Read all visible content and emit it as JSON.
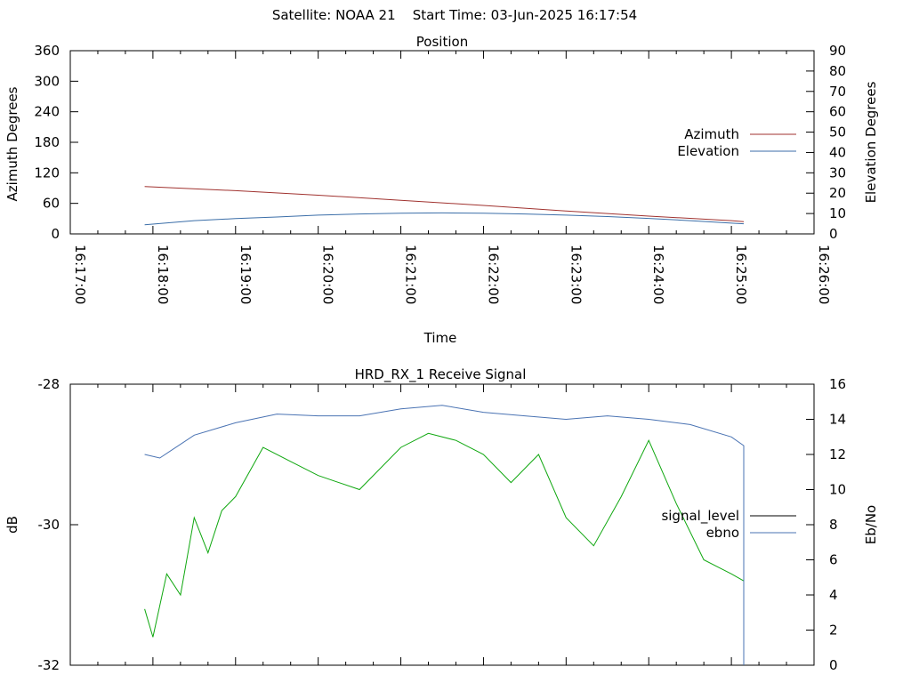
{
  "header": {
    "title": "Satellite: NOAA 21    Start Time: 03-Jun-2025 16:17:54"
  },
  "colors": {
    "azimuth": "#a0322f",
    "elevation": "#3b6ea8",
    "signal_level": "#000000",
    "ebno": "#4a73b3",
    "green_trace": "#0fa70f",
    "axis": "#000000",
    "background": "#ffffff"
  },
  "chart_data": [
    {
      "type": "line",
      "title": "Position",
      "xlabel": "Time",
      "ylabel": "Azimuth Degrees",
      "y2label": "Elevation Degrees",
      "xlim": [
        "16:17:00",
        "16:26:00"
      ],
      "ylim": [
        0,
        360
      ],
      "y2lim": [
        0,
        90
      ],
      "xticks": [
        "16:17:00",
        "16:18:00",
        "16:19:00",
        "16:20:00",
        "16:21:00",
        "16:22:00",
        "16:23:00",
        "16:24:00",
        "16:25:00",
        "16:26:00"
      ],
      "yticks": [
        "0",
        "60",
        "120",
        "180",
        "240",
        "300",
        "360"
      ],
      "y2ticks": [
        "0",
        "10",
        "20",
        "30",
        "40",
        "50",
        "60",
        "70",
        "80",
        "90"
      ],
      "legend_position": "right",
      "series": [
        {
          "name": "Azimuth",
          "axis": "y",
          "x": [
            "16:17:54",
            "16:19:00",
            "16:20:00",
            "16:21:00",
            "16:22:00",
            "16:23:00",
            "16:24:00",
            "16:25:00",
            "16:25:09"
          ],
          "values": [
            93,
            85,
            76,
            66,
            56,
            45,
            35,
            26,
            24
          ]
        },
        {
          "name": "Elevation",
          "axis": "y2",
          "x": [
            "16:17:54",
            "16:18:30",
            "16:19:00",
            "16:19:30",
            "16:20:00",
            "16:20:30",
            "16:21:00",
            "16:21:30",
            "16:22:00",
            "16:22:30",
            "16:23:00",
            "16:23:30",
            "16:24:00",
            "16:24:30",
            "16:25:00",
            "16:25:09"
          ],
          "values": [
            4.5,
            6.5,
            7.5,
            8.3,
            9.2,
            9.8,
            10.2,
            10.3,
            10.2,
            9.8,
            9.2,
            8.5,
            7.6,
            6.5,
            5.3,
            5.0
          ]
        }
      ]
    },
    {
      "type": "line",
      "title": "HRD_RX_1 Receive Signal",
      "ylabel": "dB",
      "y2label": "Eb/No",
      "xlim": [
        "16:17:00",
        "16:26:00"
      ],
      "ylim": [
        -32,
        -28
      ],
      "y2lim": [
        0,
        16
      ],
      "yticks": [
        "-28",
        "-30",
        "-32"
      ],
      "y2ticks": [
        "0",
        "2",
        "4",
        "6",
        "8",
        "10",
        "12",
        "14",
        "16"
      ],
      "legend_position": "right",
      "series": [
        {
          "name": "signal_level",
          "axis": "y",
          "x": [],
          "values": []
        },
        {
          "name": "ebno",
          "axis": "y2",
          "x": [
            "16:17:54",
            "16:18:05",
            "16:18:30",
            "16:19:00",
            "16:19:30",
            "16:20:00",
            "16:20:30",
            "16:21:00",
            "16:21:30",
            "16:22:00",
            "16:22:30",
            "16:23:00",
            "16:23:30",
            "16:24:00",
            "16:24:30",
            "16:25:00",
            "16:25:09",
            "16:25:09"
          ],
          "values": [
            12.0,
            11.8,
            13.1,
            13.8,
            14.3,
            14.2,
            14.2,
            14.6,
            14.8,
            14.4,
            14.2,
            14.0,
            14.2,
            14.0,
            13.7,
            13.0,
            12.5,
            0.0
          ]
        },
        {
          "axis": "y",
          "x": [
            "16:17:54",
            "16:18:00",
            "16:18:10",
            "16:18:20",
            "16:18:30",
            "16:18:40",
            "16:18:50",
            "16:19:00",
            "16:19:20",
            "16:19:40",
            "16:20:00",
            "16:20:30",
            "16:21:00",
            "16:21:20",
            "16:21:40",
            "16:22:00",
            "16:22:20",
            "16:22:40",
            "16:23:00",
            "16:23:20",
            "16:23:40",
            "16:24:00",
            "16:24:20",
            "16:24:40",
            "16:25:00",
            "16:25:09"
          ],
          "values": [
            -31.2,
            -31.6,
            -30.7,
            -31.0,
            -29.9,
            -30.4,
            -29.8,
            -29.6,
            -28.9,
            -29.1,
            -29.3,
            -29.5,
            -28.9,
            -28.7,
            -28.8,
            -29.0,
            -29.4,
            -29.0,
            -29.9,
            -30.3,
            -29.6,
            -28.8,
            -29.7,
            -30.5,
            -30.7,
            -30.8
          ]
        }
      ]
    }
  ]
}
